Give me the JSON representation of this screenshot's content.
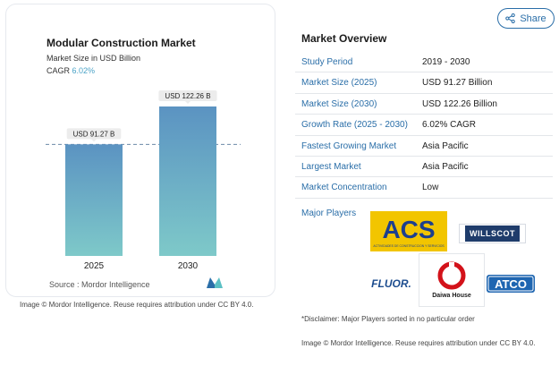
{
  "chart": {
    "title": "Modular Construction Market",
    "subtitle": "Market Size in USD Billion",
    "cagr_label": "CAGR",
    "cagr_value": "6.02%",
    "source": "Source : Mordor Intelligence"
  },
  "chart_data": {
    "type": "bar",
    "categories": [
      "2025",
      "2030"
    ],
    "values": [
      91.27,
      122.26
    ],
    "data_labels": [
      "USD 91.27 B",
      "USD 122.26 B"
    ],
    "title": "Modular Construction Market",
    "subtitle": "Market Size in USD Billion",
    "ylabel": "",
    "xlabel": "",
    "ylim": [
      0,
      122.26
    ],
    "grid": false,
    "reference_line_at": 91.27
  },
  "attribution_left": "Image © Mordor Intelligence. Reuse requires attribution under CC BY 4.0.",
  "share": {
    "label": "Share"
  },
  "overview": {
    "title": "Market Overview",
    "rows": [
      {
        "key": "Study Period",
        "value": "2019 - 2030"
      },
      {
        "key": "Market Size (2025)",
        "value": "USD 91.27 Billion"
      },
      {
        "key": "Market Size (2030)",
        "value": "USD 122.26 Billion"
      },
      {
        "key": "Growth Rate (2025 - 2030)",
        "value": "6.02% CAGR"
      },
      {
        "key": "Fastest Growing Market",
        "value": "Asia Pacific"
      },
      {
        "key": "Largest Market",
        "value": "Asia Pacific"
      },
      {
        "key": "Market Concentration",
        "value": "Low"
      }
    ],
    "players_label": "Major Players"
  },
  "players": {
    "acs": "ACS",
    "acs_tagline": "ACTIVIDADES DE CONSTRUCCION Y SERVICIOS",
    "willscot": "WILLSCOT",
    "fluor": "FLUOR.",
    "daiwa": "Daiwa House",
    "atco": "ATCO"
  },
  "colors": {
    "accent": "#2a6ea8",
    "bar_top": "#5b93c2",
    "bar_bottom": "#7ec9c9",
    "acs_bg": "#f2c500",
    "acs_text": "#1c3f8e",
    "daiwa_red": "#d3121a",
    "atco_blue": "#1f66b1"
  },
  "disclaimer": "*Disclaimer: Major Players sorted in no particular order",
  "attribution_right": "Image © Mordor Intelligence. Reuse requires attribution under CC BY 4.0."
}
